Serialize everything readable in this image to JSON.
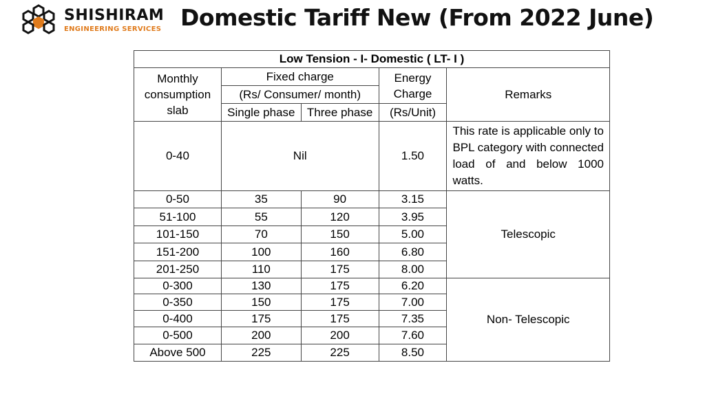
{
  "header": {
    "brand_name": "SHISHIRAM",
    "brand_sub": "ENGINEERING SERVICES",
    "title": "Domestic Tariff New (From 2022 June)"
  },
  "colors": {
    "hex_dark": "#111111",
    "hex_orange": "#e07b1c",
    "border": "#444444"
  },
  "table": {
    "caption": "Low Tension - I- Domestic ( LT- I )",
    "headers": {
      "monthly_slab": "Monthly consumption slab",
      "fixed_charge": "Fixed charge",
      "fixed_unit": "(Rs/ Consumer/ month)",
      "single_phase": "Single phase",
      "three_phase": "Three phase",
      "energy_charge": "Energy Charge",
      "energy_unit": "(Rs/Unit)",
      "remarks": "Remarks"
    },
    "bpl_row": {
      "slab": "0-40",
      "fixed": "Nil",
      "energy": "1.50",
      "remark": "This rate is applicable only to BPL category with connected load of and below 1000 watts."
    },
    "telescopic_remark": "Telescopic",
    "non_telescopic_remark": "Non- Telescopic",
    "rows": [
      {
        "slab": "0-50",
        "single": "35",
        "three": "90",
        "energy": "3.15"
      },
      {
        "slab": "51-100",
        "single": "55",
        "three": "120",
        "energy": "3.95"
      },
      {
        "slab": "101-150",
        "single": "70",
        "three": "150",
        "energy": "5.00"
      },
      {
        "slab": "151-200",
        "single": "100",
        "three": "160",
        "energy": "6.80"
      },
      {
        "slab": "201-250",
        "single": "110",
        "three": "175",
        "energy": "8.00"
      },
      {
        "slab": "0-300",
        "single": "130",
        "three": "175",
        "energy": "6.20"
      },
      {
        "slab": "0-350",
        "single": "150",
        "three": "175",
        "energy": "7.00"
      },
      {
        "slab": "0-400",
        "single": "175",
        "three": "175",
        "energy": "7.35"
      },
      {
        "slab": "0-500",
        "single": "200",
        "three": "200",
        "energy": "7.60"
      },
      {
        "slab": "Above 500",
        "single": "225",
        "three": "225",
        "energy": "8.50"
      }
    ]
  }
}
